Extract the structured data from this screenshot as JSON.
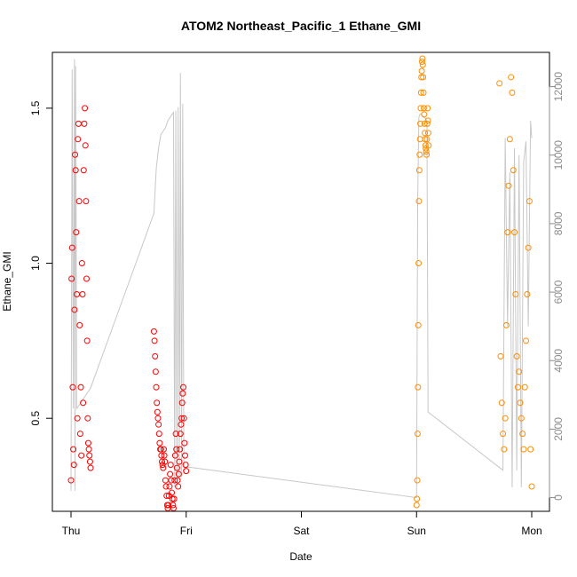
{
  "chart_data": {
    "type": "scatter",
    "title": "ATOM2 Northeast_Pacific_1 Ethane_GMI",
    "xlabel": "Date",
    "ylabel": "Ethane_GMI",
    "x_ticks": [
      "Thu",
      "Fri",
      "Sat",
      "Sun",
      "Mon"
    ],
    "x_range": [
      "Thu",
      "Mon"
    ],
    "y_ticks": [
      "0.5",
      "1.0",
      "1.5"
    ],
    "ylim": [
      0.2,
      1.68
    ],
    "y2_ticks": [
      "0",
      "2000",
      "4000",
      "6000",
      "8000",
      "10000",
      "12000"
    ],
    "y2lim": [
      -400,
      13000
    ],
    "box": true,
    "grid": false,
    "series": [
      {
        "color": "#ff0000",
        "marker": "open-circle",
        "axis": "left",
        "x": [
          0.0,
          0.005,
          0.01,
          0.015,
          0.02,
          0.025,
          0.03,
          0.035,
          0.04,
          0.045,
          0.05,
          0.055,
          0.06,
          0.065,
          0.07,
          0.075,
          0.08,
          0.085,
          0.09,
          0.095,
          0.1,
          0.105,
          0.11,
          0.115,
          0.12,
          0.125,
          0.13,
          0.135,
          0.14,
          0.145,
          0.15,
          0.155,
          0.16,
          0.165,
          0.17,
          0.72,
          0.725,
          0.73,
          0.735,
          0.74,
          0.745,
          0.75,
          0.755,
          0.76,
          0.765,
          0.77,
          0.775,
          0.78,
          0.785,
          0.79,
          0.795,
          0.8,
          0.805,
          0.81,
          0.815,
          0.82,
          0.825,
          0.83,
          0.835,
          0.84,
          0.845,
          0.85,
          0.855,
          0.86,
          0.865,
          0.87,
          0.875,
          0.88,
          0.885,
          0.89,
          0.895,
          0.9,
          0.905,
          0.91,
          0.915,
          0.92,
          0.925,
          0.93,
          0.935,
          0.94,
          0.945,
          0.95,
          0.955,
          0.96,
          0.965,
          0.97,
          0.975,
          0.98,
          0.985,
          0.99,
          0.995,
          1.0
        ],
        "y": [
          0.3,
          0.95,
          1.05,
          0.6,
          0.4,
          0.35,
          0.85,
          1.35,
          1.3,
          1.1,
          0.9,
          0.5,
          1.4,
          1.45,
          1.2,
          0.8,
          0.45,
          0.6,
          0.38,
          1.0,
          0.9,
          0.55,
          1.3,
          1.45,
          1.5,
          1.38,
          1.2,
          0.95,
          0.75,
          0.5,
          0.42,
          0.4,
          0.38,
          0.36,
          0.34,
          0.78,
          0.75,
          0.7,
          0.65,
          0.6,
          0.55,
          0.52,
          0.5,
          0.48,
          0.45,
          0.42,
          0.4,
          0.4,
          0.38,
          0.36,
          0.35,
          0.34,
          0.4,
          0.38,
          0.36,
          0.3,
          0.28,
          0.25,
          0.22,
          0.21,
          0.22,
          0.25,
          0.28,
          0.32,
          0.35,
          0.3,
          0.26,
          0.24,
          0.22,
          0.21,
          0.24,
          0.3,
          0.38,
          0.45,
          0.4,
          0.34,
          0.3,
          0.28,
          0.32,
          0.36,
          0.4,
          0.45,
          0.48,
          0.5,
          0.55,
          0.58,
          0.6,
          0.5,
          0.42,
          0.38,
          0.35,
          0.33
        ]
      },
      {
        "color": "#ff8c00",
        "marker": "open-circle",
        "axis": "left",
        "x": [
          3.0,
          3.003,
          3.006,
          3.009,
          3.012,
          3.015,
          3.018,
          3.021,
          3.024,
          3.027,
          3.03,
          3.033,
          3.036,
          3.039,
          3.042,
          3.045,
          3.048,
          3.051,
          3.054,
          3.057,
          3.06,
          3.063,
          3.066,
          3.069,
          3.072,
          3.075,
          3.078,
          3.081,
          3.084,
          3.087,
          3.09,
          3.093,
          3.096,
          3.099,
          3.102,
          3.105,
          3.72,
          3.73,
          3.74,
          3.75,
          3.76,
          3.77,
          3.78,
          3.79,
          3.8,
          3.81,
          3.82,
          3.83,
          3.84,
          3.85,
          3.86,
          3.87,
          3.88,
          3.89,
          3.9,
          3.91,
          3.92,
          3.93,
          3.94,
          3.95,
          3.96,
          3.97,
          3.98,
          3.99,
          4.0
        ],
        "y": [
          0.22,
          0.24,
          0.3,
          0.45,
          0.6,
          0.8,
          1.0,
          1.2,
          1.3,
          1.35,
          1.4,
          1.45,
          1.5,
          1.55,
          1.6,
          1.62,
          1.65,
          1.66,
          1.64,
          1.6,
          1.55,
          1.5,
          1.48,
          1.45,
          1.42,
          1.4,
          1.38,
          1.37,
          1.36,
          1.35,
          1.4,
          1.45,
          1.5,
          1.46,
          1.42,
          1.38,
          1.58,
          0.7,
          0.55,
          0.45,
          0.4,
          0.5,
          0.8,
          1.1,
          1.25,
          1.4,
          1.6,
          1.55,
          1.3,
          1.1,
          0.9,
          0.7,
          0.6,
          0.65,
          0.55,
          0.5,
          0.45,
          0.4,
          0.6,
          0.75,
          0.9,
          1.05,
          1.2,
          0.4,
          0.28
        ]
      },
      {
        "color": "#c8c8c8",
        "marker": "line",
        "axis": "right",
        "x": [
          0.0,
          0.01,
          0.02,
          0.03,
          0.035,
          0.04,
          0.05,
          0.06,
          0.07,
          0.08,
          0.09,
          0.1,
          0.11,
          0.12,
          0.13,
          0.14,
          0.15,
          0.16,
          0.17,
          0.72,
          0.74,
          0.76,
          0.78,
          0.8,
          0.82,
          0.84,
          0.86,
          0.88,
          0.89,
          0.9,
          0.91,
          0.92,
          0.93,
          0.94,
          0.95,
          0.96,
          0.97,
          0.98,
          0.99,
          1.0,
          3.0,
          3.01,
          3.02,
          3.03,
          3.04,
          3.05,
          3.06,
          3.07,
          3.08,
          3.09,
          3.1,
          3.75,
          3.77,
          3.79,
          3.81,
          3.83,
          3.85,
          3.87,
          3.89,
          3.91,
          3.93,
          3.95,
          3.97,
          3.99,
          4.0
        ],
        "y": [
          200,
          12500,
          2600,
          12800,
          200,
          12600,
          2600,
          2650,
          2700,
          2750,
          2800,
          2850,
          2900,
          2950,
          3000,
          3050,
          3100,
          3150,
          3200,
          8300,
          9600,
          10200,
          10600,
          10700,
          10800,
          11000,
          11100,
          11200,
          11250,
          300,
          11300,
          300,
          11400,
          500,
          12400,
          600,
          11500,
          700,
          800,
          900,
          0,
          8700,
          11100,
          11200,
          11200,
          11150,
          11100,
          11100,
          11050,
          11000,
          2500,
          800,
          10500,
          5000,
          9500,
          300,
          10200,
          800,
          10000,
          300,
          9800,
          10400,
          5000,
          11000,
          10500
        ]
      }
    ]
  }
}
